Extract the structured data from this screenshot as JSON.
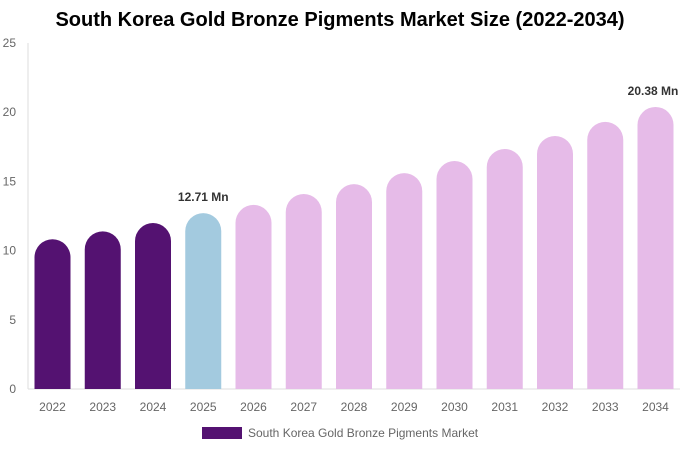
{
  "chart_data": {
    "type": "bar",
    "title": "South Korea Gold Bronze Pigments Market Size (2022-2034)",
    "categories": [
      "2022",
      "2023",
      "2024",
      "2025",
      "2026",
      "2027",
      "2028",
      "2029",
      "2030",
      "2031",
      "2032",
      "2033",
      "2034"
    ],
    "series": [
      {
        "name": "South Korea Gold Bronze Pigments Market",
        "values": [
          10.82,
          11.39,
          11.99,
          12.71,
          13.3,
          14.09,
          14.8,
          15.6,
          16.47,
          17.34,
          18.28,
          19.3,
          20.38
        ]
      }
    ],
    "data_labels": {
      "3": "12.71 Mn",
      "12": "20.38 Mn"
    },
    "ylim": [
      0,
      25
    ],
    "yticks": [
      0,
      5,
      10,
      15,
      20,
      25
    ],
    "grid": false,
    "legend": "bottom",
    "colors": {
      "historical": "#541271",
      "current": "#a3cadf",
      "forecast": "#e6bbe8"
    }
  }
}
